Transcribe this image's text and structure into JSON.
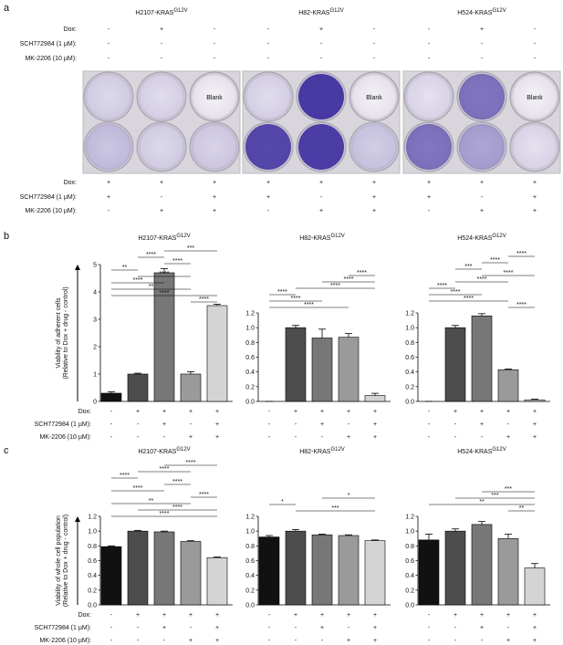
{
  "panels": [
    "a",
    "b",
    "c"
  ],
  "treatments": {
    "labels": [
      "Dox:",
      "SCH772984 (1 µM):",
      "MK-2206 (10 µM):"
    ],
    "signs": [
      [
        "-",
        "+",
        "+",
        "+",
        "+"
      ],
      [
        "-",
        "-",
        "+",
        "-",
        "+"
      ],
      [
        "-",
        "-",
        "-",
        "+",
        "+"
      ]
    ]
  },
  "panel_a": {
    "top_signs": [
      [
        "-",
        "+",
        "-"
      ],
      [
        "-",
        "-",
        "-"
      ],
      [
        "-",
        "-",
        "-"
      ]
    ],
    "bottom_signs": [
      [
        "+",
        "+",
        "+"
      ],
      [
        "+",
        "-",
        "+"
      ],
      [
        "-",
        "+",
        "+"
      ]
    ],
    "blank": "Blank"
  },
  "chart_data": [
    {
      "type": "bar",
      "title": "H2107-KRAS",
      "title_sup": "G12V",
      "ylabel": [
        "Viability of adherent cells",
        "(Relative to Dox + drug - control)"
      ],
      "values": [
        0.3,
        1.0,
        4.7,
        1.0,
        3.5
      ],
      "errors": [
        0.05,
        0.03,
        0.15,
        0.08,
        0.05
      ],
      "colors": [
        "#111111",
        "#4d4d4d",
        "#777777",
        "#9a9a9a",
        "#d4d4d4"
      ],
      "ylim": [
        0,
        5
      ],
      "yticks": [
        0,
        1,
        2,
        3,
        4,
        5
      ],
      "brackets": [
        {
          "bars": [
            2,
            4
          ],
          "label": "***"
        },
        {
          "bars": [
            1,
            2
          ],
          "label": "****"
        },
        {
          "bars": [
            2,
            3
          ],
          "label": "****"
        },
        {
          "bars": [
            0,
            1
          ],
          "label": "**"
        },
        {
          "bars": [
            1,
            3
          ],
          "label": "****"
        },
        {
          "bars": [
            0,
            2
          ],
          "label": "****"
        },
        {
          "bars": [
            0,
            3
          ],
          "label": "**"
        },
        {
          "bars": [
            0,
            4
          ],
          "label": "****"
        },
        {
          "bars": [
            3,
            4
          ],
          "label": "****"
        }
      ]
    },
    {
      "type": "bar",
      "title": "H82-KRAS",
      "title_sup": "G12V",
      "values": [
        0.0,
        1.0,
        0.86,
        0.87,
        0.08
      ],
      "errors": [
        0,
        0.03,
        0.12,
        0.05,
        0.03
      ],
      "colors": [
        "#111111",
        "#4d4d4d",
        "#777777",
        "#9a9a9a",
        "#d4d4d4"
      ],
      "ylim": [
        0,
        1.2
      ],
      "yticks": [
        {
          "value": 0,
          "label": "0.0"
        },
        0.2,
        0.4,
        0.6,
        0.8,
        {
          "value": 1,
          "label": "1.0"
        },
        1.2
      ],
      "brackets": [
        {
          "bars": [
            3,
            4
          ],
          "label": "****"
        },
        {
          "bars": [
            2,
            4
          ],
          "label": "****"
        },
        {
          "bars": [
            1,
            4
          ],
          "label": "****"
        },
        {
          "bars": [
            0,
            1
          ],
          "label": "****"
        },
        {
          "bars": [
            0,
            2
          ],
          "label": "****"
        },
        {
          "bars": [
            0,
            3
          ],
          "label": "****"
        }
      ]
    },
    {
      "type": "bar",
      "title": "H524-KRAS",
      "title_sup": "G12V",
      "values": [
        0.0,
        1.0,
        1.16,
        0.43,
        0.02
      ],
      "errors": [
        0,
        0.03,
        0.03,
        0.01,
        0.01
      ],
      "colors": [
        "#111111",
        "#4d4d4d",
        "#777777",
        "#9a9a9a",
        "#d4d4d4"
      ],
      "ylim": [
        0,
        1.2
      ],
      "yticks": [
        {
          "value": 0,
          "label": "0.0"
        },
        0.2,
        0.4,
        0.6,
        0.8,
        {
          "value": 1,
          "label": "1.0"
        },
        1.2
      ],
      "brackets": [
        {
          "bars": [
            3,
            4
          ],
          "label": "****"
        },
        {
          "bars": [
            2,
            3
          ],
          "label": "****"
        },
        {
          "bars": [
            1,
            2
          ],
          "label": "***"
        },
        {
          "bars": [
            2,
            4
          ],
          "label": "****"
        },
        {
          "bars": [
            1,
            3
          ],
          "label": "****"
        },
        {
          "bars": [
            0,
            1
          ],
          "label": "****"
        },
        {
          "bars": [
            0,
            2
          ],
          "label": "****"
        },
        {
          "bars": [
            0,
            3
          ],
          "label": "****"
        },
        {
          "bars": [
            3,
            4
          ],
          "label": "****"
        }
      ]
    },
    {
      "type": "bar",
      "title": "H2107-KRAS",
      "title_sup": "G12V",
      "ylabel": [
        "Viability of whole cell population",
        "(Relative to Dox + drug - control)"
      ],
      "values": [
        0.79,
        1.0,
        0.99,
        0.86,
        0.64
      ],
      "errors": [
        0.01,
        0.01,
        0.01,
        0.01,
        0.01
      ],
      "colors": [
        "#111111",
        "#4d4d4d",
        "#777777",
        "#9a9a9a",
        "#d4d4d4"
      ],
      "ylim": [
        0,
        1.2
      ],
      "yticks": [
        {
          "value": 0,
          "label": "0.0"
        },
        0.2,
        0.4,
        0.6,
        0.8,
        {
          "value": 1,
          "label": "1.0"
        },
        1.2
      ],
      "brackets": [
        {
          "bars": [
            2,
            4
          ],
          "label": "****"
        },
        {
          "bars": [
            1,
            3
          ],
          "label": "****"
        },
        {
          "bars": [
            0,
            1
          ],
          "label": "****"
        },
        {
          "bars": [
            2,
            3
          ],
          "label": "****"
        },
        {
          "bars": [
            0,
            2
          ],
          "label": "****"
        },
        {
          "bars": [
            3,
            4
          ],
          "label": "****"
        },
        {
          "bars": [
            0,
            3
          ],
          "label": "**"
        },
        {
          "bars": [
            1,
            4
          ],
          "label": "****"
        },
        {
          "bars": [
            0,
            4
          ],
          "label": "****"
        }
      ]
    },
    {
      "type": "bar",
      "title": "H82-KRAS",
      "title_sup": "G12V",
      "values": [
        0.92,
        1.0,
        0.95,
        0.94,
        0.87
      ],
      "errors": [
        0.02,
        0.02,
        0.01,
        0.01,
        0.01
      ],
      "colors": [
        "#111111",
        "#4d4d4d",
        "#777777",
        "#9a9a9a",
        "#d4d4d4"
      ],
      "ylim": [
        0,
        1.2
      ],
      "yticks": [
        {
          "value": 0,
          "label": "0.0"
        },
        0.2,
        0.4,
        0.6,
        0.8,
        {
          "value": 1,
          "label": "1.0"
        },
        1.2
      ],
      "brackets": [
        {
          "bars": [
            2,
            4
          ],
          "label": "*"
        },
        {
          "bars": [
            0,
            1
          ],
          "label": "*"
        },
        {
          "bars": [
            1,
            4
          ],
          "label": "***"
        }
      ]
    },
    {
      "type": "bar",
      "title": "H524-KRAS",
      "title_sup": "G12V",
      "values": [
        0.88,
        1.0,
        1.09,
        0.9,
        0.5
      ],
      "errors": [
        0.08,
        0.03,
        0.04,
        0.06,
        0.06
      ],
      "colors": [
        "#111111",
        "#4d4d4d",
        "#777777",
        "#9a9a9a",
        "#d4d4d4"
      ],
      "ylim": [
        0,
        1.2
      ],
      "yticks": [
        {
          "value": 0,
          "label": "0.0"
        },
        0.2,
        0.4,
        0.6,
        0.8,
        {
          "value": 1,
          "label": "1.0"
        },
        1.2
      ],
      "brackets": [
        {
          "bars": [
            2,
            4
          ],
          "label": "***"
        },
        {
          "bars": [
            1,
            4
          ],
          "label": "***"
        },
        {
          "bars": [
            0,
            4
          ],
          "label": "**"
        },
        {
          "bars": [
            3,
            4
          ],
          "label": "**"
        }
      ]
    }
  ]
}
